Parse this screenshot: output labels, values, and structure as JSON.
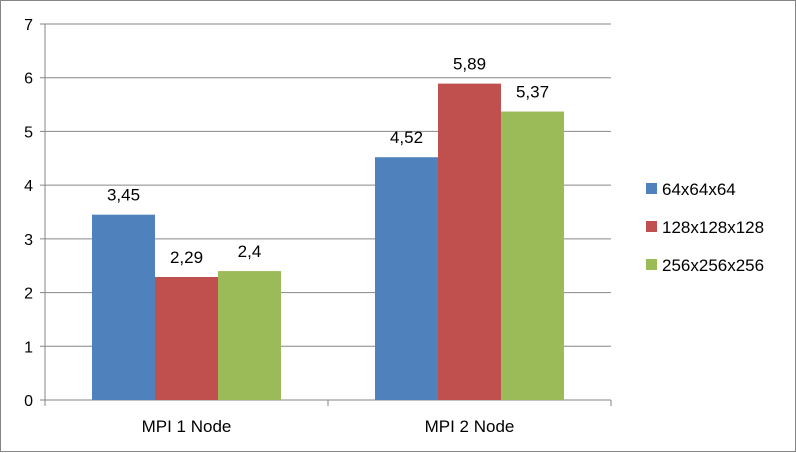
{
  "chart_data": {
    "type": "bar",
    "categories": [
      "MPI 1 Node",
      "MPI 2 Node"
    ],
    "series": [
      {
        "name": "64x64x64",
        "values": [
          3.45,
          4.52
        ],
        "labels": [
          "3,45",
          "4,52"
        ],
        "color": "#4F81BD"
      },
      {
        "name": "128x128x128",
        "values": [
          2.29,
          5.89
        ],
        "labels": [
          "2,29",
          "5,89"
        ],
        "color": "#C0504D"
      },
      {
        "name": "256x256x256",
        "values": [
          2.4,
          5.37
        ],
        "labels": [
          "2,4",
          "5,37"
        ],
        "color": "#9BBB59"
      }
    ],
    "ylim": [
      0,
      7
    ],
    "yticks": [
      0,
      1,
      2,
      3,
      4,
      5,
      6,
      7
    ],
    "grid": true,
    "legend_position": "right",
    "title": "",
    "xlabel": "",
    "ylabel": ""
  }
}
